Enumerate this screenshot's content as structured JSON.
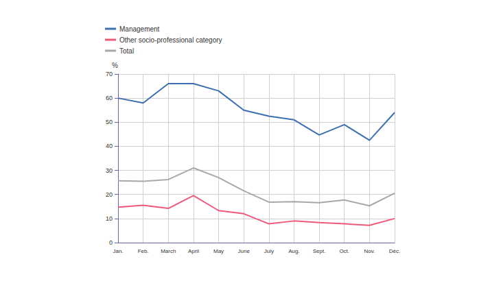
{
  "chart_data": {
    "type": "line",
    "ylabel": "%",
    "categories": [
      "Jan.",
      "Feb.",
      "March",
      "April",
      "May",
      "June",
      "July",
      "Aug.",
      "Sept.",
      "Oct.",
      "Nov.",
      "Déc."
    ],
    "series": [
      {
        "name": "Management",
        "color": "#3b6fb1",
        "values": [
          60,
          58,
          66,
          66,
          63,
          55,
          52.5,
          51,
          44.7,
          49,
          42.5,
          54
        ]
      },
      {
        "name": "Other socio-professional category",
        "color": "#f0587a",
        "values": [
          14.7,
          15.5,
          14.2,
          19.5,
          13.3,
          12,
          7.8,
          9,
          8.3,
          7.8,
          7.2,
          10
        ]
      },
      {
        "name": "Total",
        "color": "#a8a8a8",
        "values": [
          25.7,
          25.5,
          26.2,
          31,
          27,
          21.5,
          16.8,
          17,
          16.6,
          17.7,
          15.3,
          20.5
        ]
      }
    ],
    "ylim": [
      0,
      70
    ],
    "yticks": [
      0,
      10,
      20,
      30,
      40,
      50,
      60,
      70
    ],
    "grid": true,
    "legend": "top-left"
  }
}
